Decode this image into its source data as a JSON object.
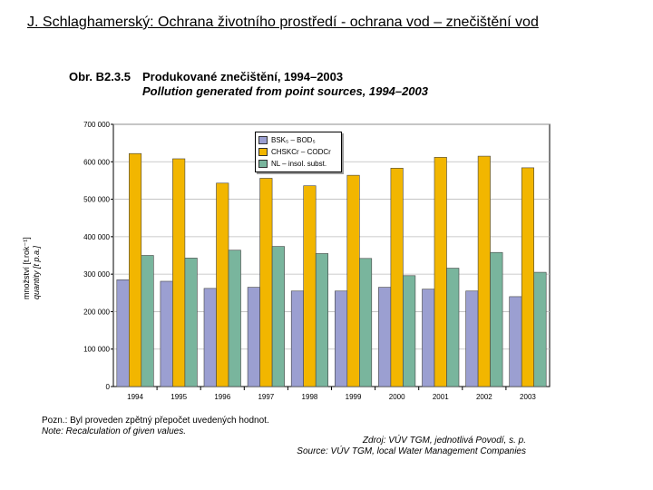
{
  "page_title": "J. Schlaghamerský: Ochrana životního prostředí - ochrana vod – znečištění vod",
  "figure": {
    "number": "Obr. B2.3.5",
    "title_cz": "Produkované znečištění, 1994–2003",
    "title_en": "Pollution generated from point sources, 1994–2003"
  },
  "yaxis": {
    "label_cz": "množství [t.rok⁻¹]",
    "label_en": "quantity [t p.a.]"
  },
  "note": {
    "cz": "Pozn.: Byl proveden zpětný přepočet uvedených hodnot.",
    "en": "Note: Recalculation of given values."
  },
  "source": {
    "cz": "Zdroj: VÚV TGM, jednotlivá Povodí, s. p.",
    "en": "Source: VÚV TGM, local Water Management Companies"
  },
  "colors": {
    "bsk": "#9b9fd1",
    "chsk": "#f2b600",
    "nl": "#79b59d"
  },
  "chart_data": {
    "type": "bar",
    "categories": [
      "1994",
      "1995",
      "1996",
      "1997",
      "1998",
      "1999",
      "2000",
      "2001",
      "2002",
      "2003"
    ],
    "ylim": [
      0,
      700000
    ],
    "yticks": [
      "0",
      "100 000",
      "200 000",
      "300 000",
      "400 000",
      "500 000",
      "600 000",
      "700 000"
    ],
    "grid": true,
    "legend_position": "top-center",
    "series": [
      {
        "name": "BSK₅ – BOD₅",
        "values": [
          285000,
          281000,
          262000,
          265000,
          255000,
          255000,
          265000,
          260000,
          255000,
          240000
        ]
      },
      {
        "name": "CHSKCr – CODCr",
        "values": [
          622000,
          608000,
          543000,
          556000,
          536000,
          564000,
          583000,
          612000,
          615000,
          584000
        ]
      },
      {
        "name": "NL – insol. subst.",
        "values": [
          350000,
          343000,
          364000,
          374000,
          355000,
          342000,
          296000,
          316000,
          358000,
          305000
        ]
      }
    ]
  }
}
